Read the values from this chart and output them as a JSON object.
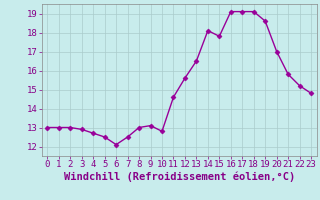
{
  "x": [
    0,
    1,
    2,
    3,
    4,
    5,
    6,
    7,
    8,
    9,
    10,
    11,
    12,
    13,
    14,
    15,
    16,
    17,
    18,
    19,
    20,
    21,
    22,
    23
  ],
  "y": [
    13.0,
    13.0,
    13.0,
    12.9,
    12.7,
    12.5,
    12.1,
    12.5,
    13.0,
    13.1,
    12.8,
    14.6,
    15.6,
    16.5,
    18.1,
    17.8,
    19.1,
    19.1,
    19.1,
    18.6,
    17.0,
    15.8,
    15.2,
    14.8
  ],
  "line_color": "#990099",
  "marker": "D",
  "marker_size": 2.5,
  "bg_color": "#c8ecec",
  "grid_color": "#aacccc",
  "xlabel": "Windchill (Refroidissement éolien,°C)",
  "ylabel": "",
  "xlim": [
    -0.5,
    23.5
  ],
  "ylim": [
    11.5,
    19.5
  ],
  "yticks": [
    12,
    13,
    14,
    15,
    16,
    17,
    18,
    19
  ],
  "xticks": [
    0,
    1,
    2,
    3,
    4,
    5,
    6,
    7,
    8,
    9,
    10,
    11,
    12,
    13,
    14,
    15,
    16,
    17,
    18,
    19,
    20,
    21,
    22,
    23
  ],
  "tick_fontsize": 6.5,
  "xlabel_fontsize": 7.5,
  "line_width": 1.0
}
